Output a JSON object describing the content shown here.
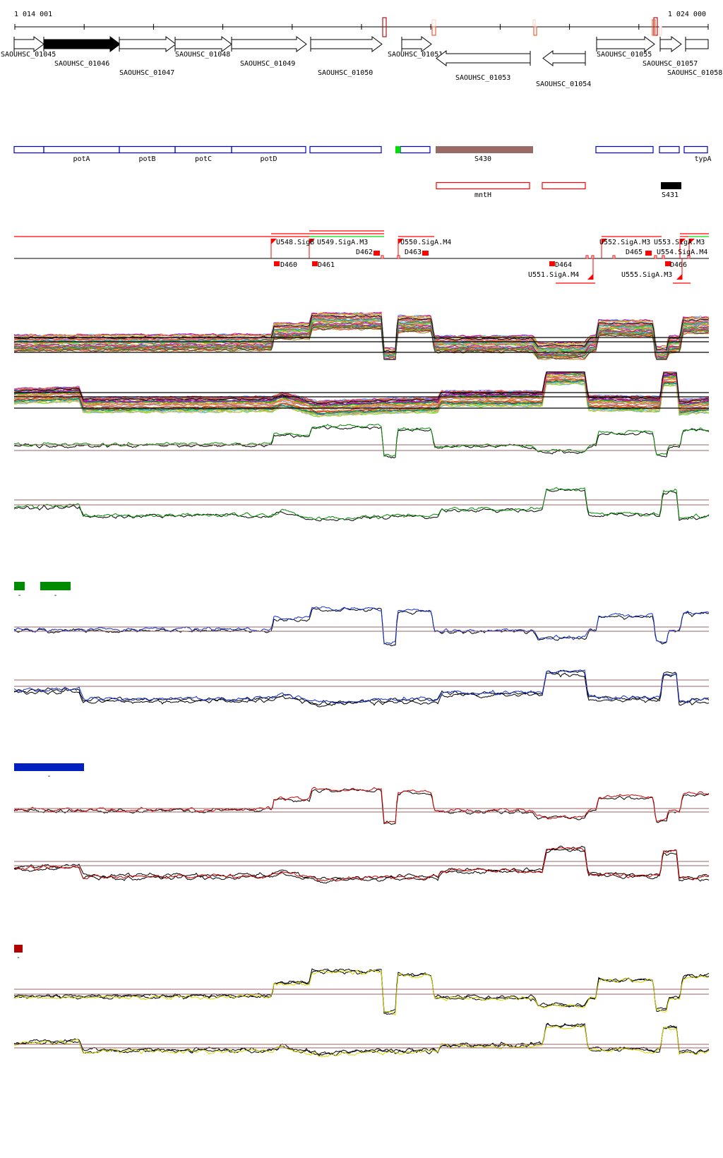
{
  "ruler": {
    "start_label": "1 014 001",
    "end_label": "1 024 000",
    "marker_colors": [
      "#b01818",
      "#f06040",
      "#f8d8c8"
    ]
  },
  "genes": [
    {
      "label": "SAOUHSC_01045",
      "strand": "+"
    },
    {
      "label": "SAOUHSC_01046",
      "strand": "+",
      "highlighted": true
    },
    {
      "label": "SAOUHSC_01047",
      "strand": "+"
    },
    {
      "label": "SAOUHSC_01048",
      "strand": "+"
    },
    {
      "label": "SAOUHSC_01049",
      "strand": "+"
    },
    {
      "label": "SAOUHSC_01050",
      "strand": "+"
    },
    {
      "label": "SAOUHSC_01051",
      "strand": "+"
    },
    {
      "label": "SAOUHSC_01053",
      "strand": "-"
    },
    {
      "label": "SAOUHSC_01054",
      "strand": "-"
    },
    {
      "label": "SAOUHSC_01055",
      "strand": "+"
    },
    {
      "label": "SAOUHSC_01057",
      "strand": "+"
    },
    {
      "label": "SAOUHSC_01058",
      "strand": "+"
    }
  ],
  "features": {
    "row1_labels": [
      "potA",
      "potB",
      "potC",
      "potD",
      "S430",
      "typA"
    ],
    "row2_labels": [
      "mntH",
      "S431"
    ],
    "colors": {
      "gene_box": "#0000d0",
      "green": "#00e000",
      "brown": "#9a6a66",
      "red": "#ff0000",
      "black": "#000000"
    }
  },
  "tss": {
    "labels": [
      "U548.SigB",
      "U549.SigA.M3",
      "D462",
      "U550.SigA.M4",
      "D463",
      "U552.SigA.M3",
      "D465",
      "U553.SigA.M3",
      "U554.SigA.M4",
      "D460",
      "D461",
      "D464",
      "U551.SigA.M4",
      "U555.SigA.M3",
      "D466"
    ],
    "color": "#ff0000",
    "alt_color": "#00e000"
  },
  "legends": [
    {
      "color": "#008c00",
      "label": "-"
    },
    {
      "color": "#008c00",
      "label": "-"
    },
    {
      "color": "#0020c0",
      "label": "-"
    },
    {
      "color": "#b00000",
      "label": "-"
    }
  ],
  "track_colors": {
    "green": "#008c00",
    "blue": "#1030d0",
    "red": "#d00000",
    "yellow": "#d8d800",
    "threshold": "#9a6464",
    "multi": [
      "#a08c20",
      "#ff4040",
      "#40c0ff",
      "#8080c0",
      "#a020a0",
      "#ff8020",
      "#20a020",
      "#c04040",
      "#60e000",
      "#e06080",
      "#404040",
      "#c0a000",
      "#ff6060",
      "#80a0ff",
      "#d06000",
      "#b000b0",
      "#00a080",
      "#e0c040"
    ]
  }
}
